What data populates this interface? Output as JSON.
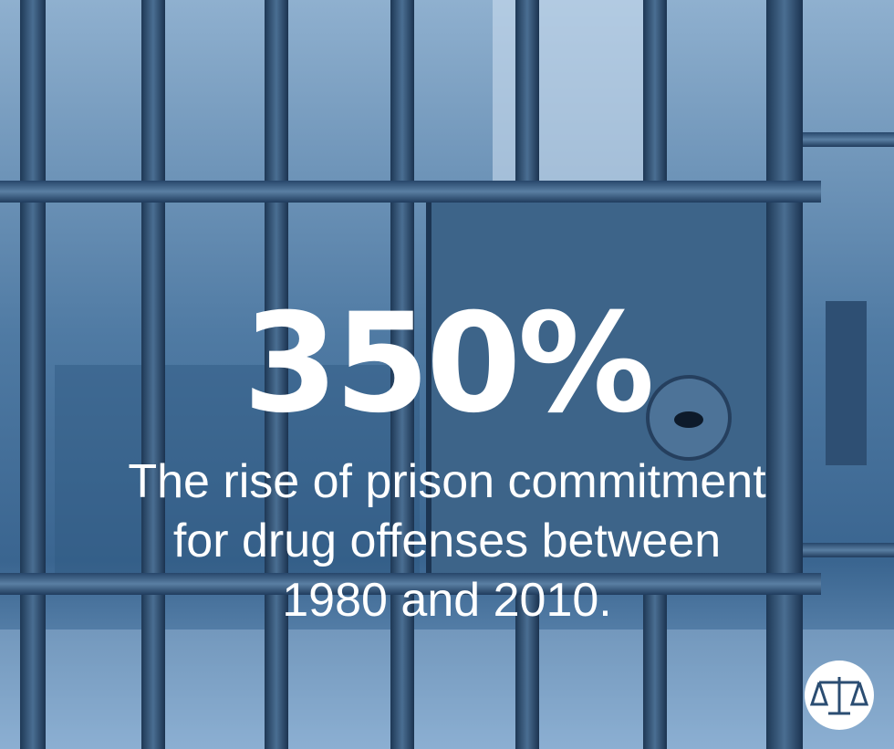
{
  "headline": "350%",
  "caption_lines": [
    "The rise of prison commitment",
    "for drug offenses between",
    "1980 and 2010."
  ]
}
